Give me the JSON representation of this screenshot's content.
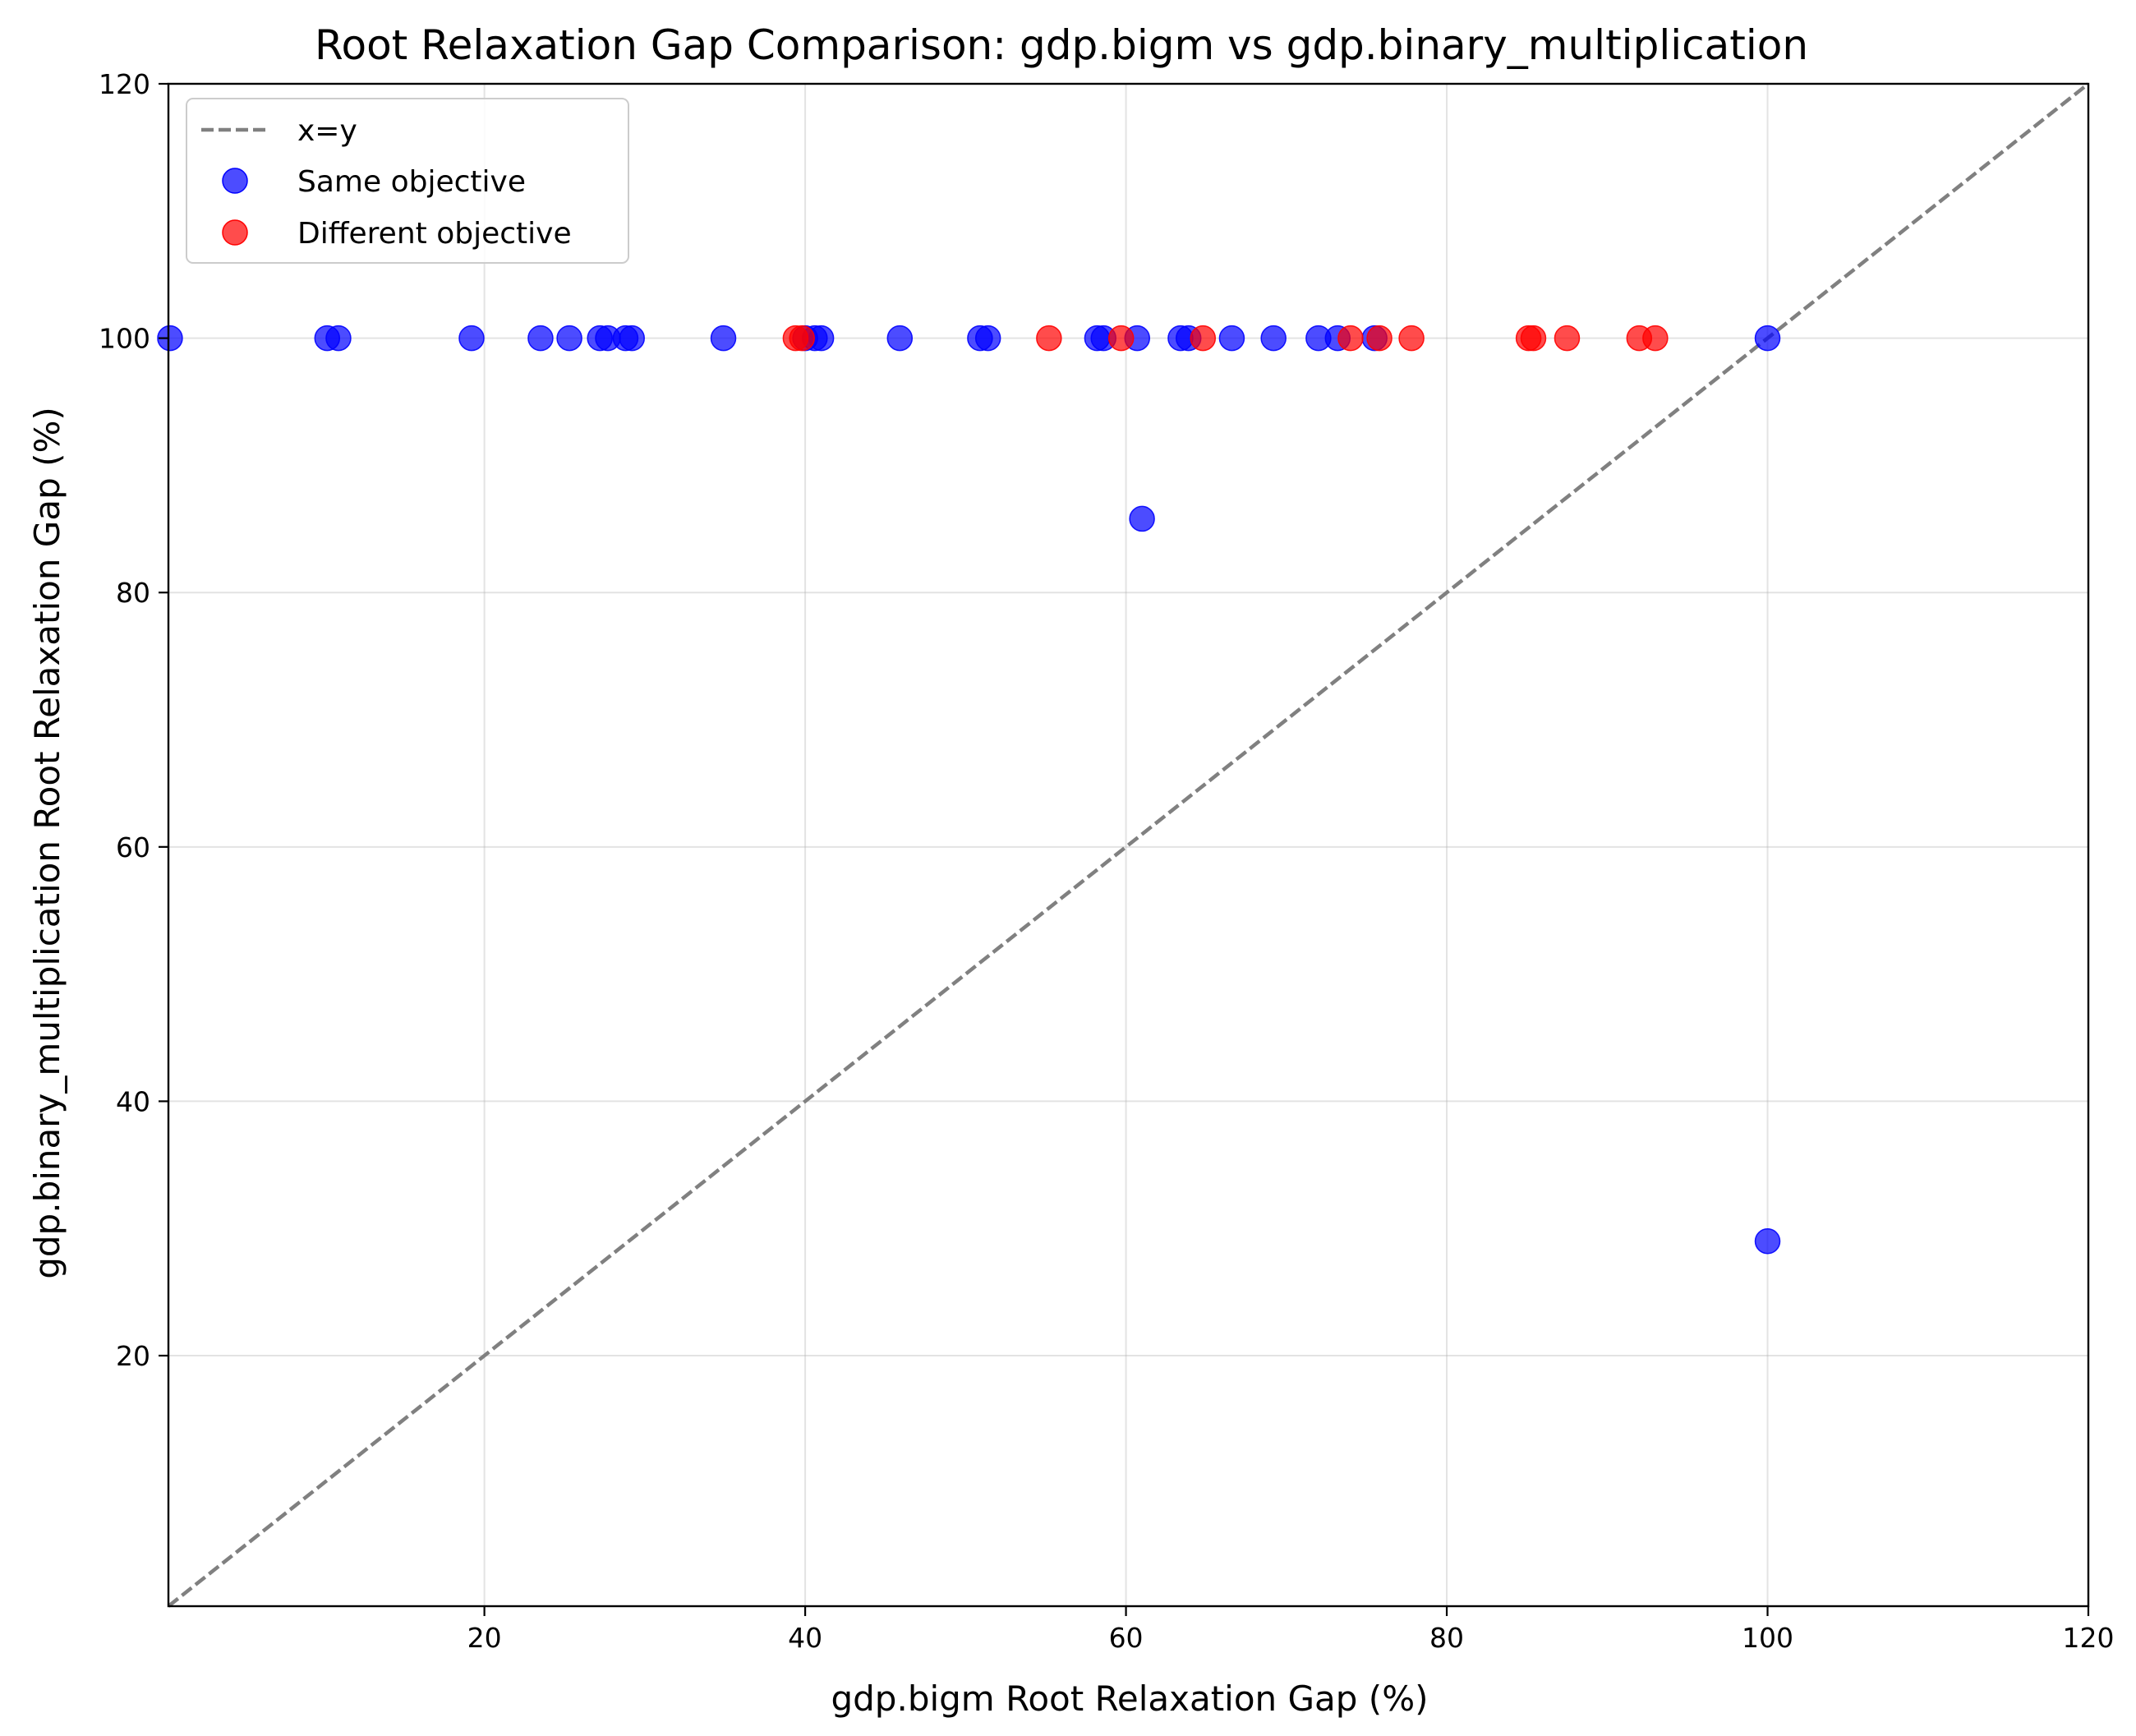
{
  "chart_data": {
    "type": "scatter",
    "title": "Root Relaxation Gap Comparison: gdp.bigm vs gdp.binary_multiplication",
    "xlabel": "gdp.bigm Root Relaxation Gap (%)",
    "ylabel": "gdp.binary_multiplication Root Relaxation Gap (%)",
    "xlim": [
      0.3,
      120
    ],
    "ylim": [
      0.3,
      120
    ],
    "xticks": [
      20,
      40,
      60,
      80,
      100,
      120
    ],
    "yticks": [
      20,
      40,
      60,
      80,
      100,
      120
    ],
    "grid": true,
    "legend_position": "top-left",
    "reference_line": {
      "name": "x=y",
      "color": "#808080",
      "style": "dashed"
    },
    "series": [
      {
        "name": "Same objective",
        "color": "#0000ff",
        "x": [
          0.4,
          10.2,
          10.9,
          19.2,
          23.5,
          25.3,
          27.2,
          27.7,
          28.8,
          29.2,
          34.9,
          40.0,
          40.6,
          41.0,
          45.9,
          50.9,
          51.4,
          58.2,
          58.6,
          60.7,
          61.0,
          63.4,
          63.9,
          66.6,
          69.2,
          72.0,
          73.2,
          75.5,
          100.0,
          100.0
        ],
        "y": [
          100,
          100,
          100,
          100,
          100,
          100,
          100,
          100,
          100,
          100,
          100,
          100,
          100,
          100,
          100,
          100,
          100,
          100,
          100,
          100,
          85.8,
          100,
          100,
          100,
          100,
          100,
          100,
          100,
          100,
          29.0
        ]
      },
      {
        "name": "Different objective",
        "color": "#ff0000",
        "x": [
          39.4,
          39.8,
          55.2,
          59.7,
          64.8,
          74.0,
          75.8,
          77.8,
          85.1,
          85.4,
          87.5,
          92.0,
          93.0
        ],
        "y": [
          100,
          100,
          100,
          100,
          100,
          100,
          100,
          100,
          100,
          100,
          100,
          100,
          100
        ]
      }
    ]
  }
}
